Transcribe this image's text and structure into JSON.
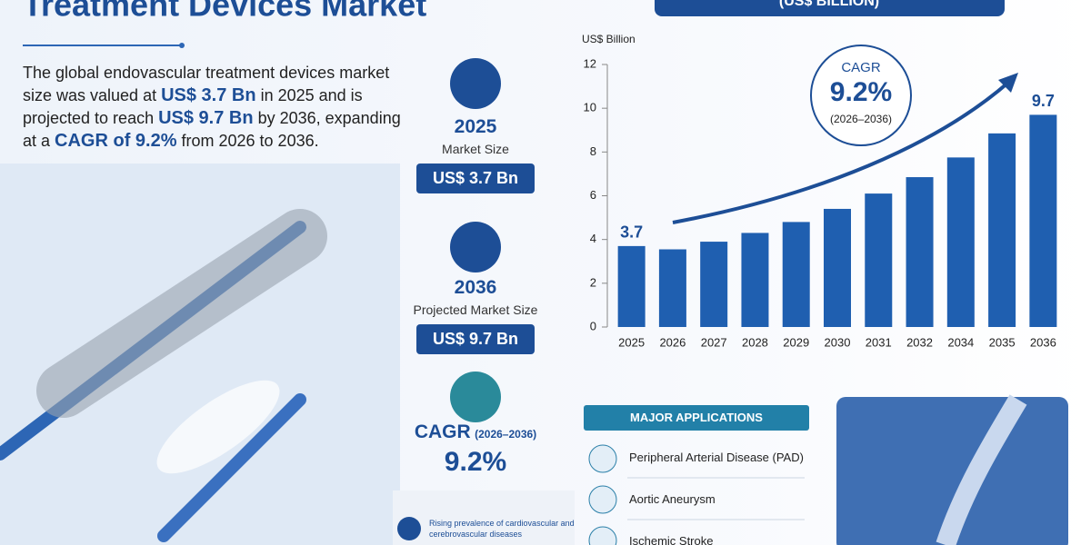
{
  "header": {
    "title": "Treatment Devices Market",
    "pill": "(US$ BILLION)"
  },
  "intro": [
    "The global endovascular treatment devices market size was valued at ",
    "US$ 3.7 Bn",
    " in 2025 and is projected to reach ",
    "US$ 9.7 Bn",
    " by 2036, expanding at a ",
    "CAGR of 9.2%",
    " from 2026 to 2036."
  ],
  "stats": [
    {
      "year": "2025",
      "label": "Market Size",
      "value": "US$ 3.7 Bn"
    },
    {
      "year": "2036",
      "label": "Projected Market Size",
      "value": "US$ 9.7 Bn"
    }
  ],
  "cagr_stat": {
    "label": "CAGR",
    "period": "(2026–2036)",
    "value": "9.2%"
  },
  "applications": {
    "title": "MAJOR APPLICATIONS",
    "items": [
      "Peripheral Arterial Disease (PAD)",
      "Aortic Aneurysm",
      "Ischemic Stroke"
    ]
  },
  "driver": "Rising prevalence of cardiovascular and cerebrovascular diseases",
  "chart_data": {
    "type": "bar",
    "ylabel": "US$ Billion",
    "categories": [
      "2025",
      "2026",
      "2027",
      "2028",
      "2029",
      "2030",
      "2031",
      "2032",
      "2034",
      "2035",
      "2036"
    ],
    "values": [
      3.7,
      3.55,
      3.9,
      4.3,
      4.8,
      5.4,
      6.1,
      6.85,
      7.75,
      8.85,
      9.7
    ],
    "value_labels": [
      "3.7",
      null,
      null,
      null,
      null,
      null,
      null,
      null,
      null,
      null,
      "9.7"
    ],
    "color": "#1f5fb0",
    "ylim": [
      0,
      12
    ],
    "yticks": [
      0,
      2,
      4,
      6,
      8,
      10,
      12
    ],
    "annotation": {
      "label": "CAGR",
      "value": "9.2%",
      "period": "(2026–2036)"
    }
  }
}
